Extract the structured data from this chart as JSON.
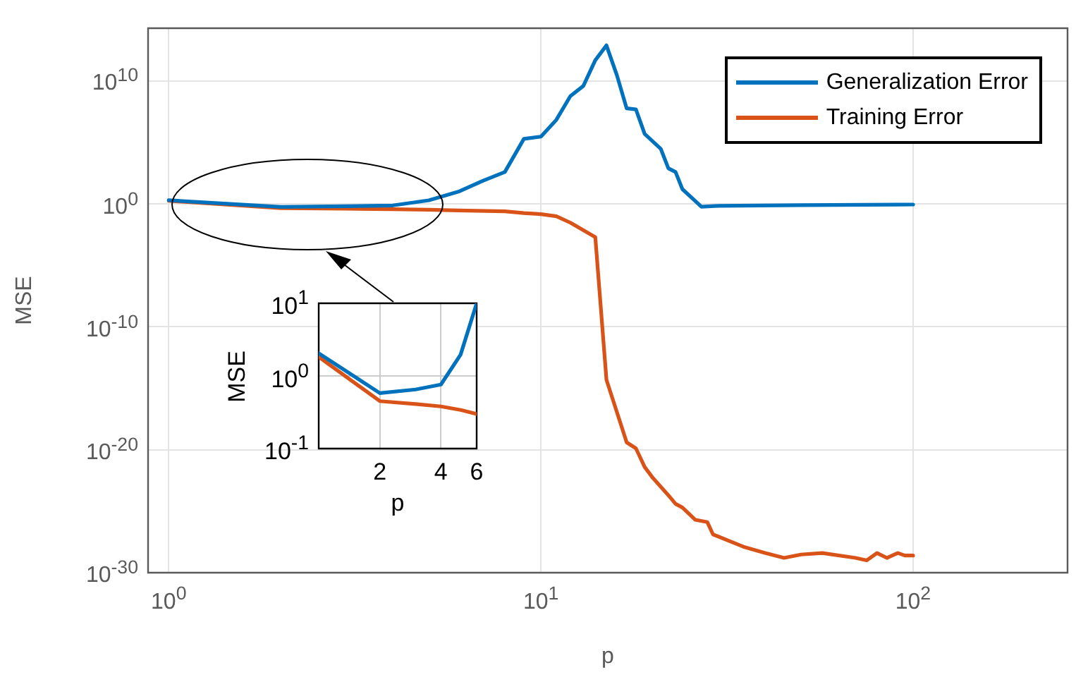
{
  "chart_data": [
    {
      "type": "line",
      "xlabel": "p",
      "ylabel": "MSE",
      "log": "xy",
      "grid": true,
      "legend": "top right",
      "xlim": [
        0.88,
        260
      ],
      "ylim": [
        1e-30,
        200000000000000.0
      ],
      "xticks": [
        {
          "value": 1,
          "label": "10$^{0}$"
        },
        {
          "value": 10,
          "label": "10$^{1}$"
        },
        {
          "value": 100,
          "label": "10$^{2}$"
        }
      ],
      "yticks": [
        {
          "value": 1e-30,
          "label": "10$^{-30}$"
        },
        {
          "value": 1e-20,
          "label": "10$^{-20}$"
        },
        {
          "value": 1e-10,
          "label": "10$^{-10}$"
        },
        {
          "value": 1,
          "label": "10$^{0}$"
        },
        {
          "value": 10000000000.0,
          "label": "10$^{10}$"
        }
      ],
      "series": [
        {
          "name": "Generalization Error",
          "color": "#0072bd",
          "x": [
            1,
            2,
            3,
            4,
            5,
            6,
            7,
            8,
            9,
            10,
            11,
            12,
            13,
            14,
            15,
            16,
            17,
            18,
            19,
            21,
            22,
            23,
            24,
            27,
            30,
            50,
            100
          ],
          "values": [
            2,
            0.58,
            0.65,
            0.76,
            2,
            10,
            80,
            400,
            200000.0,
            300000.0,
            7000000.0,
            600000000.0,
            4000000000.0,
            500000000000.0,
            8000000000000.0,
            30000000000.0,
            60000000.0,
            50000000.0,
            500000.0,
            30000.0,
            800,
            400,
            16,
            0.6,
            0.7,
            0.8,
            0.9
          ]
        },
        {
          "name": "Training Error",
          "color": "#d95319",
          "x": [
            1,
            2,
            3,
            4,
            5,
            6,
            8,
            9,
            10,
            11,
            12,
            14,
            15,
            17,
            18,
            19,
            20,
            22,
            23,
            24,
            26,
            28,
            29,
            35,
            40,
            45,
            50,
            57,
            70,
            75,
            80,
            85,
            91,
            95,
            100
          ],
          "values": [
            1.8,
            0.45,
            0.41,
            0.38,
            0.34,
            0.3,
            0.25,
            0.18,
            0.15,
            0.1,
            0.03,
            0.002,
            5e-15,
            4e-20,
            1.3e-20,
            4e-22,
            5e-23,
            2e-24,
            4e-25,
            2e-25,
            2e-26,
            1.3e-26,
            1.3e-27,
            1.3e-28,
            4e-29,
            1.6e-29,
            3e-29,
            4e-29,
            1.6e-29,
            1e-29,
            4e-29,
            1.6e-29,
            4e-29,
            2.5e-29,
            2.5e-29
          ]
        }
      ]
    },
    {
      "type": "line",
      "xlabel": "p",
      "ylabel": "MSE",
      "log": "xy",
      "grid": true,
      "xlim": [
        1,
        6
      ],
      "ylim": [
        0.1,
        10
      ],
      "xticks": [
        2,
        4,
        6
      ],
      "yticks": [
        {
          "value": 0.1,
          "label": "10$^{-1}$"
        },
        {
          "value": 1,
          "label": "10$^{0}$"
        },
        {
          "value": 10,
          "label": "10$^{1}$"
        }
      ],
      "series": [
        {
          "color": "#0072bd",
          "x": [
            1,
            2,
            3,
            4,
            5,
            6
          ],
          "values": [
            2.05,
            0.58,
            0.65,
            0.76,
            1.96,
            10
          ]
        },
        {
          "color": "#d95319",
          "x": [
            1,
            2,
            3,
            4,
            5,
            6
          ],
          "values": [
            1.83,
            0.45,
            0.41,
            0.38,
            0.34,
            0.3
          ]
        }
      ]
    }
  ]
}
